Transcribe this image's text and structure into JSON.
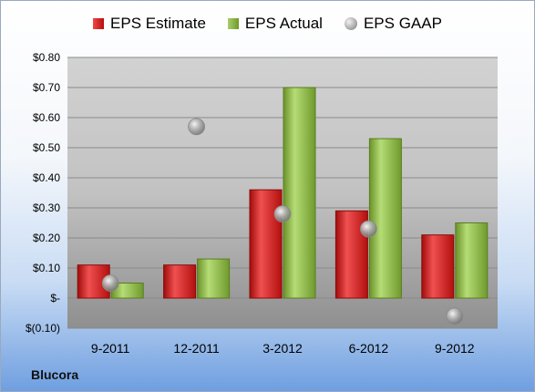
{
  "company": "Blucora",
  "legend": {
    "estimate": "EPS Estimate",
    "actual": "EPS Actual",
    "gaap": "EPS GAAP"
  },
  "chart_data": {
    "type": "bar",
    "categories": [
      "9-2011",
      "12-2011",
      "3-2012",
      "6-2012",
      "9-2012"
    ],
    "series": [
      {
        "name": "EPS Estimate",
        "values": [
          0.11,
          0.11,
          0.36,
          0.29,
          0.21
        ],
        "color": "#d42020"
      },
      {
        "name": "EPS Actual",
        "values": [
          0.05,
          0.13,
          0.7,
          0.53,
          0.25
        ],
        "color": "#8cb84a"
      }
    ],
    "scatter": {
      "name": "EPS GAAP",
      "values": [
        0.05,
        0.57,
        0.28,
        0.23,
        -0.06
      ],
      "color": "#a0a0a0"
    },
    "ylim": [
      -0.1,
      0.8
    ],
    "yticks": [
      0.8,
      0.7,
      0.6,
      0.5,
      0.4,
      0.3,
      0.2,
      0.1,
      0.0,
      -0.1
    ],
    "ytick_labels": [
      "$0.80",
      "$0.70",
      "$0.60",
      "$0.50",
      "$0.40",
      "$0.30",
      "$0.20",
      "$0.10",
      "$-",
      "$(0.10)"
    ],
    "grid": true,
    "legend_position": "top"
  }
}
